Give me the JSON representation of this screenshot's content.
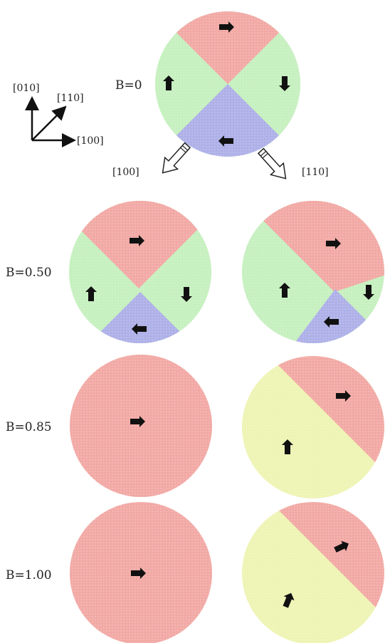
{
  "colors": {
    "red": "#f2a9a5",
    "green": "#c6f0bf",
    "blue": "#aeb0e8",
    "yellow": "#eef4b4",
    "arrow": "#111111"
  },
  "axes": {
    "y_label": "[010]",
    "diag_label": "[110]",
    "x_label": "[100]"
  },
  "branches": {
    "left_label": "[100]",
    "right_label": "[110]"
  },
  "rows": [
    {
      "label": "B=0"
    },
    {
      "label": "B=0.50"
    },
    {
      "label": "B=0.85"
    },
    {
      "label": "B=1.00"
    }
  ]
}
